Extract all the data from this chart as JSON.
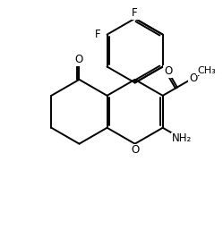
{
  "bg_color": "#ffffff",
  "bond_color": "#000000",
  "text_color": "#000000",
  "line_width": 1.4,
  "font_size": 8.5,
  "xlim": [
    0,
    10
  ],
  "ylim": [
    0,
    10.3
  ]
}
